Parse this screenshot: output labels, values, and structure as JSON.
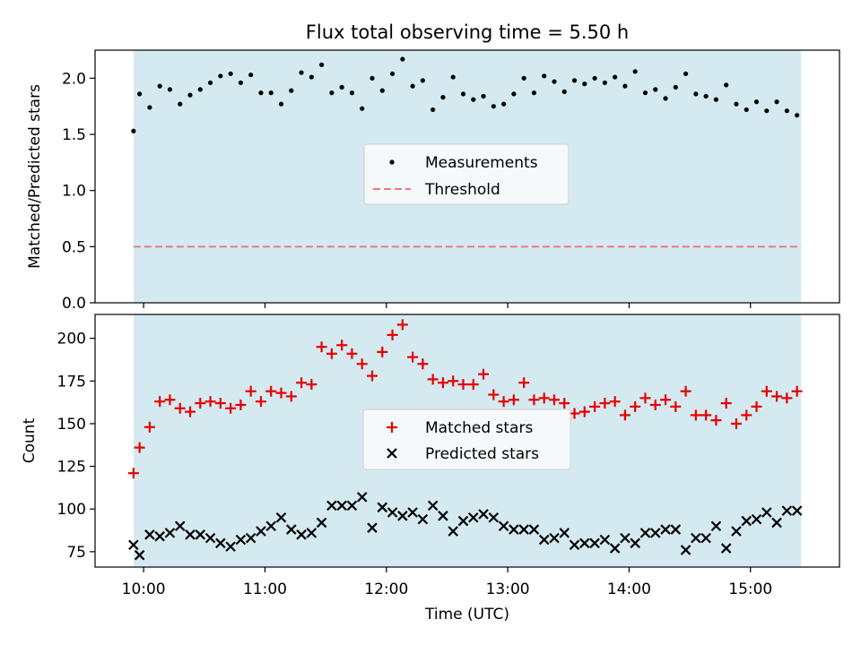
{
  "chart_data": [
    {
      "type": "scatter",
      "title": "Flux total observing time = 5.50 h",
      "xlabel": "",
      "ylabel": "Matched/Predicted stars",
      "ylim": [
        0.0,
        2.25
      ],
      "yticks": [
        "0.0",
        "0.5",
        "1.0",
        "1.5",
        "2.0"
      ],
      "xlim": [
        "09:36",
        "15:44"
      ],
      "observing_window": [
        "09:55",
        "15:25"
      ],
      "shaded_color": "#d4eaf0",
      "legend": "center",
      "series": [
        {
          "name": "Measurements",
          "color": "#000000",
          "marker": "dot",
          "x": [
            "09:55",
            "09:58",
            "10:03",
            "10:08",
            "10:13",
            "10:18",
            "10:23",
            "10:28",
            "10:33",
            "10:38",
            "10:43",
            "10:48",
            "10:53",
            "10:58",
            "11:03",
            "11:08",
            "11:13",
            "11:18",
            "11:23",
            "11:28",
            "11:33",
            "11:38",
            "11:43",
            "11:48",
            "11:53",
            "11:58",
            "12:03",
            "12:08",
            "12:13",
            "12:18",
            "12:23",
            "12:28",
            "12:33",
            "12:38",
            "12:43",
            "12:48",
            "12:53",
            "12:58",
            "13:03",
            "13:08",
            "13:13",
            "13:18",
            "13:23",
            "13:28",
            "13:33",
            "13:38",
            "13:43",
            "13:48",
            "13:53",
            "13:58",
            "14:03",
            "14:08",
            "14:13",
            "14:18",
            "14:23",
            "14:28",
            "14:33",
            "14:38",
            "14:43",
            "14:48",
            "14:53",
            "14:58",
            "15:03",
            "15:08",
            "15:13",
            "15:18",
            "15:23"
          ],
          "y": [
            1.53,
            1.86,
            1.74,
            1.93,
            1.9,
            1.77,
            1.85,
            1.9,
            1.96,
            2.02,
            2.04,
            1.96,
            2.03,
            1.87,
            1.87,
            1.77,
            1.89,
            2.05,
            2.01,
            2.12,
            1.87,
            1.92,
            1.87,
            1.73,
            2.0,
            1.89,
            2.04,
            2.17,
            1.93,
            1.98,
            1.72,
            1.83,
            2.01,
            1.86,
            1.81,
            1.84,
            1.75,
            1.77,
            1.86,
            2.0,
            1.87,
            2.02,
            1.97,
            1.88,
            1.98,
            1.95,
            2.0,
            1.96,
            2.01,
            1.93,
            2.06,
            1.87,
            1.9,
            1.82,
            1.92,
            2.04,
            1.86,
            1.84,
            1.81,
            1.94,
            1.77,
            1.72,
            1.79,
            1.71,
            1.79,
            1.71,
            1.67
          ]
        },
        {
          "name": "Threshold",
          "color": "#e87c7c",
          "style": "dashed",
          "x": [
            "09:55",
            "15:25"
          ],
          "y": [
            0.5,
            0.5
          ]
        }
      ]
    },
    {
      "type": "scatter",
      "title": "",
      "xlabel": "Time (UTC)",
      "ylabel": "Count",
      "ylim": [
        66,
        214
      ],
      "yticks": [
        "75",
        "100",
        "125",
        "150",
        "175",
        "200"
      ],
      "xlim": [
        "09:36",
        "15:44"
      ],
      "xticks": [
        "10:00",
        "11:00",
        "12:00",
        "13:00",
        "14:00",
        "15:00"
      ],
      "observing_window": [
        "09:55",
        "15:25"
      ],
      "shaded_color": "#d4eaf0",
      "legend": "center",
      "series": [
        {
          "name": "Matched stars",
          "color": "#e60000",
          "marker": "plus",
          "x": [
            "09:55",
            "09:58",
            "10:03",
            "10:08",
            "10:13",
            "10:18",
            "10:23",
            "10:28",
            "10:33",
            "10:38",
            "10:43",
            "10:48",
            "10:53",
            "10:58",
            "11:03",
            "11:08",
            "11:13",
            "11:18",
            "11:23",
            "11:28",
            "11:33",
            "11:38",
            "11:43",
            "11:48",
            "11:53",
            "11:58",
            "12:03",
            "12:08",
            "12:13",
            "12:18",
            "12:23",
            "12:28",
            "12:33",
            "12:38",
            "12:43",
            "12:48",
            "12:53",
            "12:58",
            "13:03",
            "13:08",
            "13:13",
            "13:18",
            "13:23",
            "13:28",
            "13:33",
            "13:38",
            "13:43",
            "13:48",
            "13:53",
            "13:58",
            "14:03",
            "14:08",
            "14:13",
            "14:18",
            "14:23",
            "14:28",
            "14:33",
            "14:38",
            "14:43",
            "14:48",
            "14:53",
            "14:58",
            "15:03",
            "15:08",
            "15:13",
            "15:18",
            "15:23"
          ],
          "y": [
            121,
            136,
            148,
            163,
            164,
            159,
            157,
            162,
            163,
            162,
            159,
            161,
            169,
            163,
            169,
            168,
            166,
            174,
            173,
            195,
            191,
            196,
            191,
            185,
            178,
            192,
            202,
            208,
            189,
            185,
            176,
            174,
            175,
            173,
            173,
            179,
            167,
            163,
            164,
            174,
            164,
            165,
            164,
            162,
            156,
            157,
            160,
            162,
            163,
            155,
            160,
            165,
            161,
            164,
            160,
            169,
            155,
            155,
            152,
            162,
            150,
            155,
            160,
            169,
            166,
            165,
            169
          ]
        },
        {
          "name": "Predicted stars",
          "color": "#000000",
          "marker": "x",
          "x": [
            "09:55",
            "09:58",
            "10:03",
            "10:08",
            "10:13",
            "10:18",
            "10:23",
            "10:28",
            "10:33",
            "10:38",
            "10:43",
            "10:48",
            "10:53",
            "10:58",
            "11:03",
            "11:08",
            "11:13",
            "11:18",
            "11:23",
            "11:28",
            "11:33",
            "11:38",
            "11:43",
            "11:48",
            "11:53",
            "11:58",
            "12:03",
            "12:08",
            "12:13",
            "12:18",
            "12:23",
            "12:28",
            "12:33",
            "12:38",
            "12:43",
            "12:48",
            "12:53",
            "12:58",
            "13:03",
            "13:08",
            "13:13",
            "13:18",
            "13:23",
            "13:28",
            "13:33",
            "13:38",
            "13:43",
            "13:48",
            "13:53",
            "13:58",
            "14:03",
            "14:08",
            "14:13",
            "14:18",
            "14:23",
            "14:28",
            "14:33",
            "14:38",
            "14:43",
            "14:48",
            "14:53",
            "14:58",
            "15:03",
            "15:08",
            "15:13",
            "15:18",
            "15:23"
          ],
          "y": [
            79,
            73,
            85,
            84,
            86,
            90,
            85,
            85,
            83,
            80,
            78,
            82,
            83,
            87,
            90,
            95,
            88,
            85,
            86,
            92,
            102,
            102,
            102,
            107,
            89,
            101,
            98,
            96,
            98,
            94,
            102,
            96,
            87,
            93,
            95,
            97,
            95,
            90,
            88,
            88,
            88,
            82,
            83,
            86,
            79,
            80,
            80,
            82,
            77,
            83,
            80,
            86,
            86,
            88,
            88,
            76,
            83,
            83,
            90,
            77,
            87,
            93,
            94,
            98,
            92,
            99,
            99
          ]
        }
      ]
    }
  ]
}
